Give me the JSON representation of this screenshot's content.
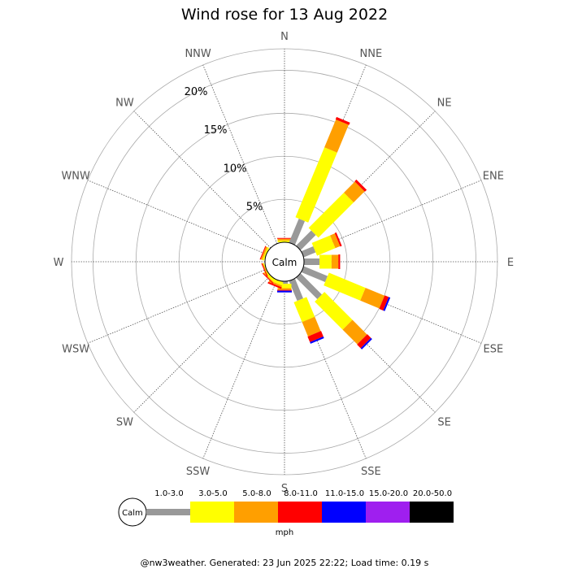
{
  "chart_data": {
    "type": "windrose",
    "title": "Wind rose for 13 Aug 2022",
    "directions": [
      "N",
      "NNE",
      "NE",
      "ENE",
      "E",
      "ESE",
      "SE",
      "SSE",
      "S",
      "SSW",
      "SW",
      "WSW",
      "W",
      "WNW",
      "NW",
      "NNW"
    ],
    "ring_labels": [
      "5%",
      "10%",
      "15%",
      "20%"
    ],
    "ring_values": [
      5,
      10,
      15,
      20
    ],
    "r_max_percent": 22.5,
    "center_label": "Calm",
    "unit": "mph",
    "bins": [
      {
        "label": "1.0-3.0",
        "color": "#999999"
      },
      {
        "label": "3.0-5.0",
        "color": "#ffff00"
      },
      {
        "label": "5.0-8.0",
        "color": "#ff9f00"
      },
      {
        "label": "8.0-11.0",
        "color": "#ff0000"
      },
      {
        "label": "11.0-15.0",
        "color": "#0000ff"
      },
      {
        "label": "15.0-20.0",
        "color": "#9f1fef"
      },
      {
        "label": "20.0-50.0",
        "color": "#000000"
      }
    ],
    "series": [
      {
        "direction": "N",
        "values": [
          0.0,
          0.2,
          0.2,
          0.1,
          0,
          0,
          0
        ]
      },
      {
        "direction": "NNE",
        "values": [
          3.0,
          8.8,
          3.5,
          0.3,
          0,
          0,
          0
        ]
      },
      {
        "direction": "NE",
        "values": [
          2.5,
          5.8,
          1.8,
          0.3,
          0,
          0,
          0
        ]
      },
      {
        "direction": "ENE",
        "values": [
          1.5,
          2.3,
          0.6,
          0.2,
          0,
          0,
          0
        ]
      },
      {
        "direction": "E",
        "values": [
          1.8,
          1.4,
          0.8,
          0.2,
          0,
          0,
          0
        ]
      },
      {
        "direction": "ESE",
        "values": [
          3.0,
          4.6,
          2.4,
          0.5,
          0.2,
          0,
          0
        ]
      },
      {
        "direction": "SE",
        "values": [
          3.5,
          4.6,
          2.4,
          0.6,
          0.2,
          0,
          0
        ]
      },
      {
        "direction": "SSE",
        "values": [
          2.5,
          2.5,
          1.8,
          0.7,
          0.2,
          0,
          0
        ]
      },
      {
        "direction": "S",
        "values": [
          0.3,
          0.5,
          0.2,
          0.1,
          0.2,
          0,
          0
        ]
      },
      {
        "direction": "SSW",
        "values": [
          0,
          0.4,
          0.2,
          0.2,
          0,
          0,
          0
        ]
      },
      {
        "direction": "SW",
        "values": [
          0,
          0.3,
          0.1,
          0.1,
          0,
          0,
          0
        ]
      },
      {
        "direction": "WSW",
        "values": [
          0,
          0.1,
          0.1,
          0.1,
          0,
          0,
          0
        ]
      },
      {
        "direction": "W",
        "values": [
          0,
          0,
          0,
          0,
          0,
          0,
          0
        ]
      },
      {
        "direction": "WNW",
        "values": [
          0,
          0.2,
          0.2,
          0.1,
          0,
          0,
          0
        ]
      },
      {
        "direction": "NW",
        "values": [
          0,
          0,
          0,
          0,
          0,
          0,
          0
        ]
      },
      {
        "direction": "NNW",
        "values": [
          0,
          0,
          0,
          0,
          0,
          0,
          0
        ]
      }
    ]
  },
  "footer": "@nw3weather. Generated: 23 Jun 2025 22:22; Load time: 0.19 s"
}
